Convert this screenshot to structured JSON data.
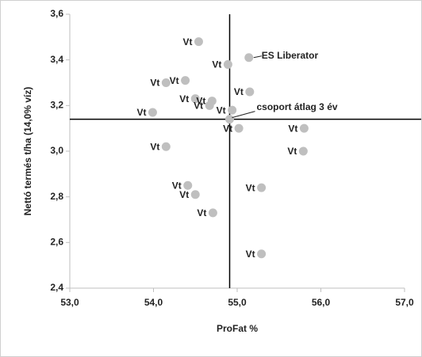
{
  "chart_data": {
    "type": "scatter",
    "x_label": "ProFat %",
    "y_label": "Nettó termés t/ha (14,0% víz)",
    "series": [
      {
        "color": "#bfbfbf",
        "labels": [
          "Vt",
          "ES Liberator",
          "Vt",
          "Vt",
          "Vt",
          "Vt",
          "Vt",
          "Vt",
          "Vt",
          "Vt",
          "Vt",
          "csoport átlag 3 év",
          "Vt",
          "Vt",
          "Vt",
          "Vt",
          "Vt",
          "Vt",
          "Vt",
          "Vt",
          "Vt"
        ],
        "x": [
          54.54,
          55.14,
          54.89,
          54.38,
          54.15,
          55.15,
          54.5,
          54.7,
          54.67,
          54.94,
          53.99,
          54.91,
          55.02,
          55.8,
          55.79,
          54.15,
          54.41,
          54.5,
          55.29,
          54.71,
          55.29
        ],
        "values": [
          3.48,
          3.41,
          3.38,
          3.31,
          3.3,
          3.26,
          3.23,
          3.22,
          3.2,
          3.18,
          3.17,
          3.14,
          3.1,
          3.1,
          3.0,
          3.02,
          2.85,
          2.81,
          2.84,
          2.73,
          2.55
        ]
      }
    ],
    "reference_x": 54.91,
    "reference_y": 3.14,
    "xlim": [
      53,
      57
    ],
    "ylim": [
      2.4,
      3.6
    ],
    "xticks": [
      {
        "value": 53,
        "label": "53,0"
      },
      {
        "value": 54,
        "label": "54,0"
      },
      {
        "value": 55,
        "label": "55,0"
      },
      {
        "value": 56,
        "label": "56,0"
      },
      {
        "value": 57,
        "label": "57,0"
      }
    ],
    "yticks": [
      {
        "value": 2.4,
        "label": "2,4"
      },
      {
        "value": 2.6,
        "label": "2,6"
      },
      {
        "value": 2.8,
        "label": "2,8"
      },
      {
        "value": 3.0,
        "label": "3,0"
      },
      {
        "value": 3.2,
        "label": "3,2"
      },
      {
        "value": 3.4,
        "label": "3,4"
      },
      {
        "value": 3.6,
        "label": "3,6"
      }
    ]
  }
}
